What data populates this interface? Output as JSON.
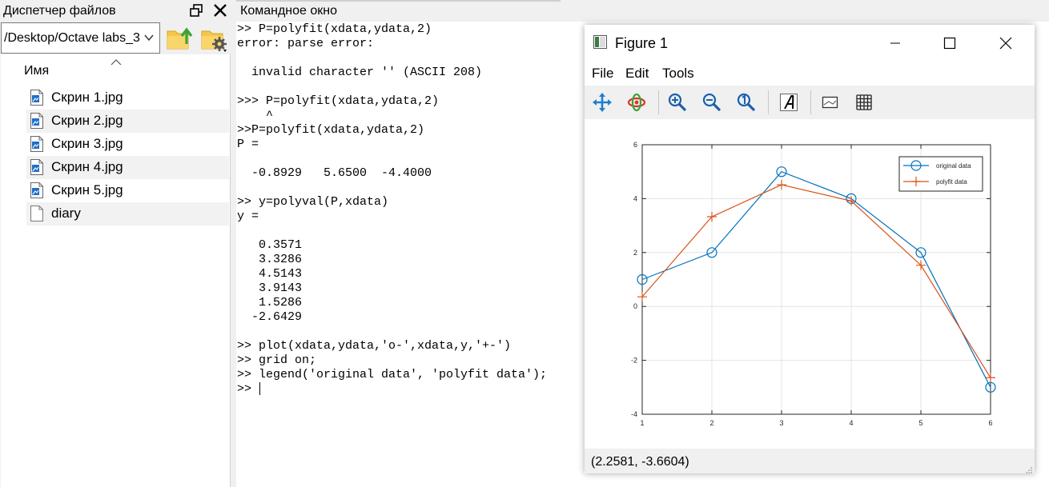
{
  "file_manager": {
    "title": "Диспетчер файлов",
    "path": "/Desktop/Octave labs_3",
    "column_header": "Имя",
    "files": [
      {
        "name": "Скрин 1.jpg",
        "icon": "image-file-icon"
      },
      {
        "name": "Скрин 2.jpg",
        "icon": "image-file-icon"
      },
      {
        "name": "Скрин 3.jpg",
        "icon": "image-file-icon"
      },
      {
        "name": "Скрин 4.jpg",
        "icon": "image-file-icon"
      },
      {
        "name": "Скрин 5.jpg",
        "icon": "image-file-icon"
      },
      {
        "name": "diary",
        "icon": "blank-file-icon"
      }
    ]
  },
  "command_window": {
    "title": "Командное окно",
    "lines": [
      ">> P=polyfit(xdata,ydata,2)",
      "error: parse error:",
      "",
      "  invalid character '' (ASCII 208)",
      "",
      ">>> P=polyfit(xdata,ydata,2)",
      "    ^",
      ">>P=polyfit(xdata,ydata,2)",
      "P =",
      "",
      "  -0.8929   5.6500  -4.4000",
      "",
      ">> y=polyval(P,xdata)",
      "y =",
      "",
      "   0.3571",
      "   3.3286",
      "   4.5143",
      "   3.9143",
      "   1.5286",
      "  -2.6429",
      "",
      ">> plot(xdata,ydata,'o-',xdata,y,'+-')",
      ">> grid on;",
      ">> legend('original data', 'polyfit data');",
      ">> "
    ]
  },
  "figure": {
    "title": "Figure 1",
    "menus": [
      "File",
      "Edit",
      "Tools"
    ],
    "toolbar_icons": [
      "pan-icon",
      "rotate-icon",
      "zoom-in-icon",
      "zoom-out-icon",
      "zoom-reset-icon",
      "text-insert-icon",
      "axes-toggle-icon",
      "grid-toggle-icon"
    ],
    "status_coords": "(2.2581, -3.6604)"
  },
  "colors": {
    "series1": "#0072bd",
    "series2": "#d95319"
  },
  "chart_data": {
    "type": "line",
    "x": [
      1,
      2,
      3,
      4,
      5,
      6
    ],
    "series": [
      {
        "name": "original data",
        "values": [
          1,
          2,
          5,
          4,
          2,
          -3
        ],
        "marker": "o"
      },
      {
        "name": "polyfit data",
        "values": [
          0.3571,
          3.3286,
          4.5143,
          3.9143,
          1.5286,
          -2.6429
        ],
        "marker": "+"
      }
    ],
    "xlim": [
      1,
      6
    ],
    "ylim": [
      -4,
      6
    ],
    "xticks": [
      1,
      2,
      3,
      4,
      5,
      6
    ],
    "yticks": [
      -4,
      -2,
      0,
      2,
      4,
      6
    ],
    "grid": true,
    "legend_position": "top-right",
    "title": "",
    "xlabel": "",
    "ylabel": ""
  }
}
